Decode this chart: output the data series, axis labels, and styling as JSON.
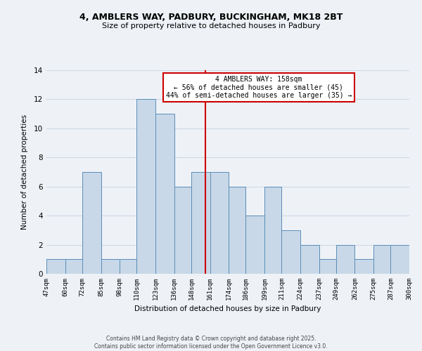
{
  "title": "4, AMBLERS WAY, PADBURY, BUCKINGHAM, MK18 2BT",
  "subtitle": "Size of property relative to detached houses in Padbury",
  "xlabel": "Distribution of detached houses by size in Padbury",
  "ylabel": "Number of detached properties",
  "bin_edges": [
    47,
    60,
    72,
    85,
    98,
    110,
    123,
    136,
    148,
    161,
    174,
    186,
    199,
    211,
    224,
    237,
    249,
    262,
    275,
    287,
    300
  ],
  "counts": [
    1,
    1,
    7,
    1,
    1,
    12,
    11,
    6,
    7,
    7,
    6,
    4,
    6,
    3,
    2,
    1,
    2,
    1,
    2,
    2
  ],
  "bar_color": "#c8d8e8",
  "bar_edge_color": "#5b8db8",
  "ref_line_x": 158,
  "ref_line_color": "#cc0000",
  "annotation_title": "4 AMBLERS WAY: 158sqm",
  "annotation_line1": "← 56% of detached houses are smaller (45)",
  "annotation_line2": "44% of semi-detached houses are larger (35) →",
  "annotation_box_color": "#ffffff",
  "annotation_box_edge": "#cc0000",
  "ylim": [
    0,
    14
  ],
  "yticks": [
    0,
    2,
    4,
    6,
    8,
    10,
    12,
    14
  ],
  "tick_labels": [
    "47sqm",
    "60sqm",
    "72sqm",
    "85sqm",
    "98sqm",
    "110sqm",
    "123sqm",
    "136sqm",
    "148sqm",
    "161sqm",
    "174sqm",
    "186sqm",
    "199sqm",
    "211sqm",
    "224sqm",
    "237sqm",
    "249sqm",
    "262sqm",
    "275sqm",
    "287sqm",
    "300sqm"
  ],
  "footer_line1": "Contains HM Land Registry data © Crown copyright and database right 2025.",
  "footer_line2": "Contains public sector information licensed under the Open Government Licence v3.0.",
  "bg_color": "#eef2f7",
  "grid_color": "#d0d8e4"
}
